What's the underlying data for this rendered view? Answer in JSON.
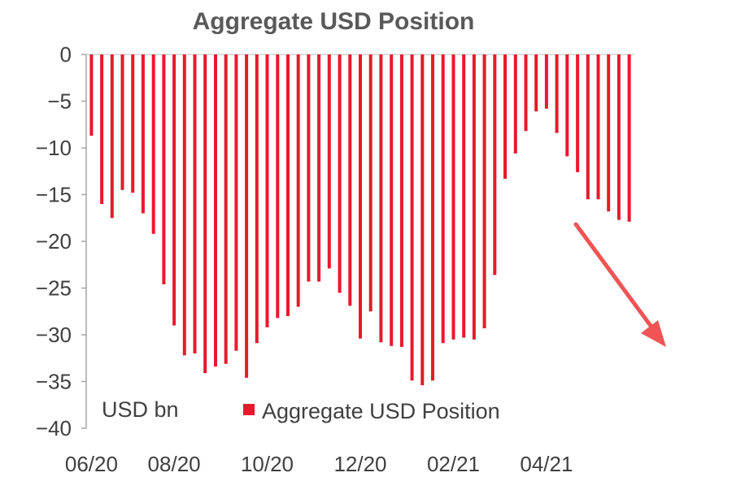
{
  "chart_data": {
    "type": "bar",
    "title": "Aggregate USD Position",
    "units_label": "USD bn",
    "legend": [
      "Aggregate USD Position"
    ],
    "legend_placement": "bottom-center inside plot",
    "grid": false,
    "ylim": [
      -40,
      0
    ],
    "yticks": [
      0,
      -5,
      -10,
      -15,
      -20,
      -25,
      -30,
      -35,
      -40
    ],
    "xtick_labels": [
      "06/20",
      "08/20",
      "10/20",
      "12/20",
      "02/21",
      "04/21"
    ],
    "xtick_bar_index": [
      0,
      8,
      17,
      26,
      35,
      44
    ],
    "bar_color": "#e8192c",
    "arrow_color": "#f05454",
    "series": [
      {
        "name": "Aggregate USD Position",
        "values": [
          -8.7,
          -16.0,
          -17.5,
          -14.5,
          -14.8,
          -17.0,
          -19.2,
          -24.6,
          -29.0,
          -32.2,
          -32.0,
          -34.1,
          -33.4,
          -33.1,
          -31.7,
          -34.6,
          -30.9,
          -29.2,
          -28.2,
          -28.0,
          -27.0,
          -24.3,
          -24.3,
          -22.9,
          -25.5,
          -26.9,
          -30.4,
          -27.5,
          -30.8,
          -31.2,
          -31.3,
          -34.9,
          -35.4,
          -34.9,
          -30.9,
          -30.5,
          -30.3,
          -30.5,
          -29.3,
          -23.6,
          -13.3,
          -10.6,
          -8.2,
          -6.1,
          -5.8,
          -8.4,
          -10.9,
          -12.6,
          -15.5,
          -15.5,
          -16.8,
          -17.7,
          -17.9
        ]
      }
    ]
  }
}
